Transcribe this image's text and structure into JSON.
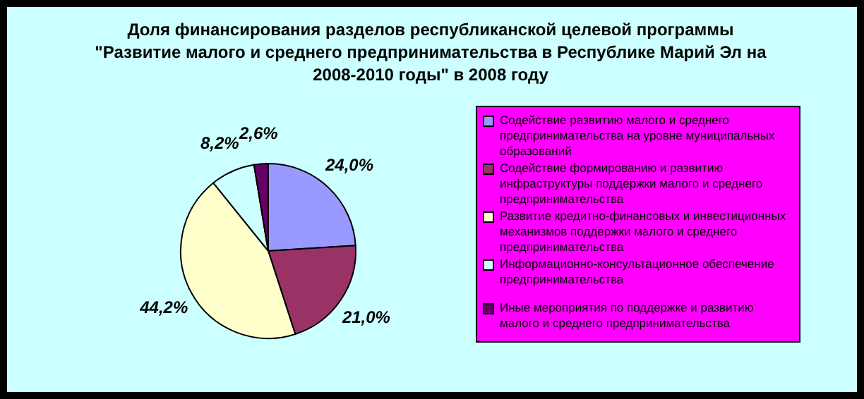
{
  "chart_data": {
    "type": "pie",
    "title": "Доля финансирования разделов республиканской целевой программы \"Развитие малого и среднего предпринимательства в Республике Марий Эл на 2008-2010 годы\" в 2008 году",
    "categories": [
      "Содействие развитию малого и среднего предпринимательства на уровне муниципальных образований",
      "Содействие формированию и развитию инфраструктуры поддержки малого и среднего предпринимательства",
      "Развитие кредитно-финансовых и инвестиционных механизмов поддержки малого и среднего предпринимательства",
      "Информационно-консультационное обеспечение предпринимательства",
      "Иные мероприятия по поддержке и развитию малого и среднего предпринимательства"
    ],
    "values": [
      24.0,
      21.0,
      44.2,
      8.2,
      2.6
    ],
    "value_labels": [
      "24,0%",
      "21,0%",
      "44,2%",
      "8,2%",
      "2,6%"
    ],
    "colors": [
      "#9999ff",
      "#993366",
      "#ffffcc",
      "#ccffff",
      "#660066"
    ],
    "legend": "right"
  }
}
